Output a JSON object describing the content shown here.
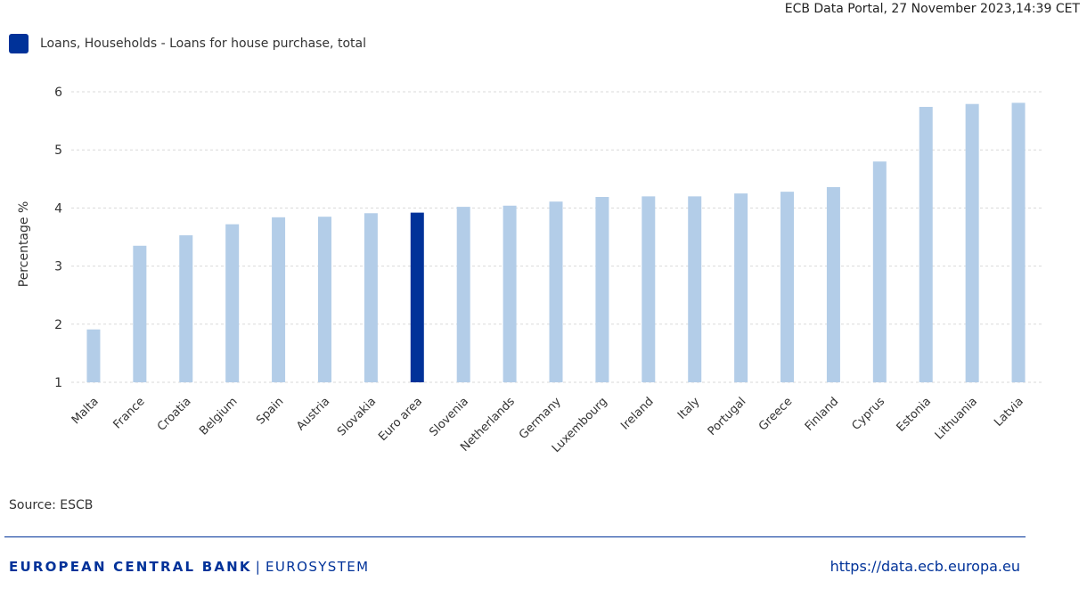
{
  "header": {
    "timestamp": "ECB Data Portal, 27 November 2023,14:39 CET"
  },
  "legend": {
    "label": "Loans, Households - Loans for house purchase, total"
  },
  "colors": {
    "bar": "#b3cde8",
    "highlight": "#003299",
    "grid": "#d9d9d9"
  },
  "chart_data": {
    "type": "bar",
    "categories": [
      "Malta",
      "France",
      "Croatia",
      "Belgium",
      "Spain",
      "Austria",
      "Slovakia",
      "Euro area",
      "Slovenia",
      "Netherlands",
      "Germany",
      "Luxembourg",
      "Ireland",
      "Italy",
      "Portugal",
      "Greece",
      "Finland",
      "Cyprus",
      "Estonia",
      "Lithuania",
      "Latvia"
    ],
    "series": [
      {
        "name": "Loans, Households - Loans for house purchase, total",
        "values": [
          1.91,
          3.35,
          3.53,
          3.72,
          3.84,
          3.85,
          3.91,
          3.92,
          4.02,
          4.04,
          4.11,
          4.19,
          4.2,
          4.2,
          4.25,
          4.28,
          4.36,
          4.8,
          5.74,
          5.79,
          5.81
        ]
      }
    ],
    "highlight_category": "Euro area",
    "ylabel": "Percentage %",
    "ylim": [
      1,
      6
    ],
    "yticks": [
      1,
      2,
      3,
      4,
      5,
      6
    ],
    "grid": true,
    "legend_position": "top-left"
  },
  "source": "Source: ESCB",
  "footer": {
    "bank_name": "EUROPEAN CENTRAL BANK",
    "separator": "|",
    "eurosystem": "EUROSYSTEM",
    "url": "https://data.ecb.europa.eu"
  }
}
